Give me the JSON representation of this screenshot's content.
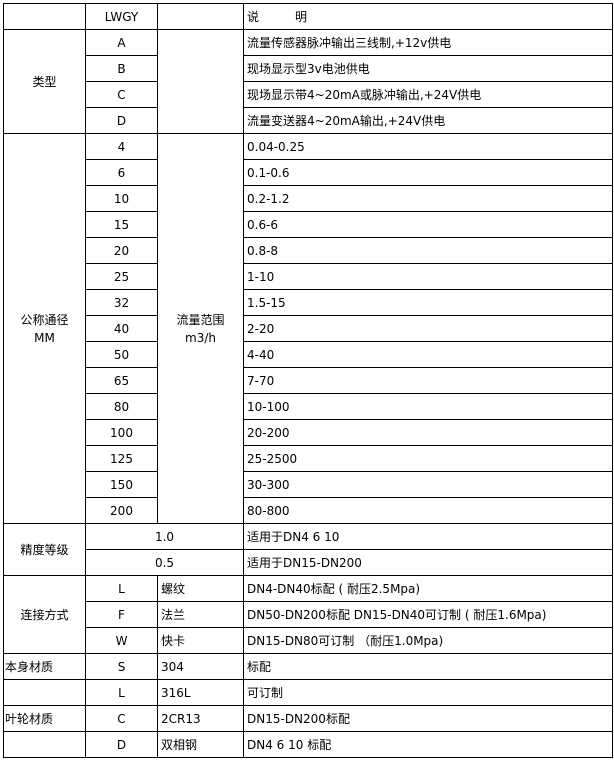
{
  "header": {
    "model": "LWGY",
    "description": "说　　　明"
  },
  "type_section": {
    "label": "类型",
    "rows": [
      {
        "code": "A",
        "desc": "流量传感器脉冲输出三线制,+12v供电"
      },
      {
        "code": "B",
        "desc": "现场显示型3v电池供电"
      },
      {
        "code": "C",
        "desc": "现场显示带4~20mA或脉冲输出,+24V供电"
      },
      {
        "code": "D",
        "desc": "流量变送器4~20mA输出,+24V供电"
      }
    ]
  },
  "size_section": {
    "label_line1": "公称通径",
    "label_line2": "MM",
    "range_label_line1": "流量范围",
    "range_label_line2": "m3/h",
    "rows": [
      {
        "dn": "4",
        "range": "0.04-0.25"
      },
      {
        "dn": "6",
        "range": "0.1-0.6"
      },
      {
        "dn": "10",
        "range": "0.2-1.2"
      },
      {
        "dn": "15",
        "range": "0.6-6"
      },
      {
        "dn": "20",
        "range": "0.8-8"
      },
      {
        "dn": "25",
        "range": "1-10"
      },
      {
        "dn": "32",
        "range": "1.5-15"
      },
      {
        "dn": "40",
        "range": "2-20"
      },
      {
        "dn": "50",
        "range": "4-40"
      },
      {
        "dn": "65",
        "range": "7-70"
      },
      {
        "dn": "80",
        "range": "10-100"
      },
      {
        "dn": "100",
        "range": "20-200"
      },
      {
        "dn": "125",
        "range": "25-2500"
      },
      {
        "dn": "150",
        "range": "30-300"
      },
      {
        "dn": "200",
        "range": "80-800"
      }
    ]
  },
  "accuracy_section": {
    "label": "精度等级",
    "rows": [
      {
        "grade": "1.0",
        "desc": "适用于DN4  6  10"
      },
      {
        "grade": "0.5",
        "desc": "适用于DN15-DN200"
      }
    ]
  },
  "connection_section": {
    "label": "连接方式",
    "rows": [
      {
        "code": "L",
        "name": "螺纹",
        "desc": "DN4-DN40标配 ( 耐压2.5Mpa)"
      },
      {
        "code": "F",
        "name": "法兰",
        "desc": "DN50-DN200标配 DN15-DN40可订制 ( 耐压1.6Mpa)"
      },
      {
        "code": "W",
        "name": "快卡",
        "desc": "DN15-DN80可订制 （耐压1.0Mpa)"
      }
    ]
  },
  "body_material": {
    "label": "本身材质",
    "rows": [
      {
        "code": "S",
        "name": "304",
        "desc": "标配"
      },
      {
        "code": "L",
        "name": "316L",
        "desc": "可订制"
      }
    ]
  },
  "impeller_material": {
    "label": "叶轮材质",
    "rows": [
      {
        "code": "C",
        "name": "2CR13",
        "desc": "DN15-DN200标配"
      },
      {
        "code": "D",
        "name": "双相钢",
        "desc": "DN4 6 10 标配"
      }
    ]
  }
}
